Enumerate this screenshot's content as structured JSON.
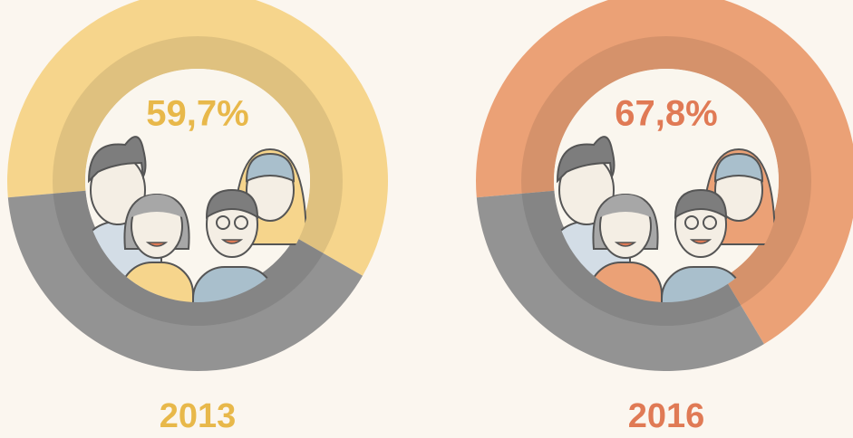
{
  "chart_data": [
    {
      "type": "donut",
      "title": "2013",
      "values": [
        59.7,
        40.3
      ],
      "value_labels": [
        "59,7%",
        null
      ],
      "colors": [
        "#f6d58c",
        "#939393"
      ],
      "label_color": "#e8b84a"
    },
    {
      "type": "donut",
      "title": "2016",
      "values": [
        67.8,
        32.2
      ],
      "value_labels": [
        "67,8%",
        null
      ],
      "colors": [
        "#eba176",
        "#939393"
      ],
      "label_color": "#e07a55"
    }
  ]
}
